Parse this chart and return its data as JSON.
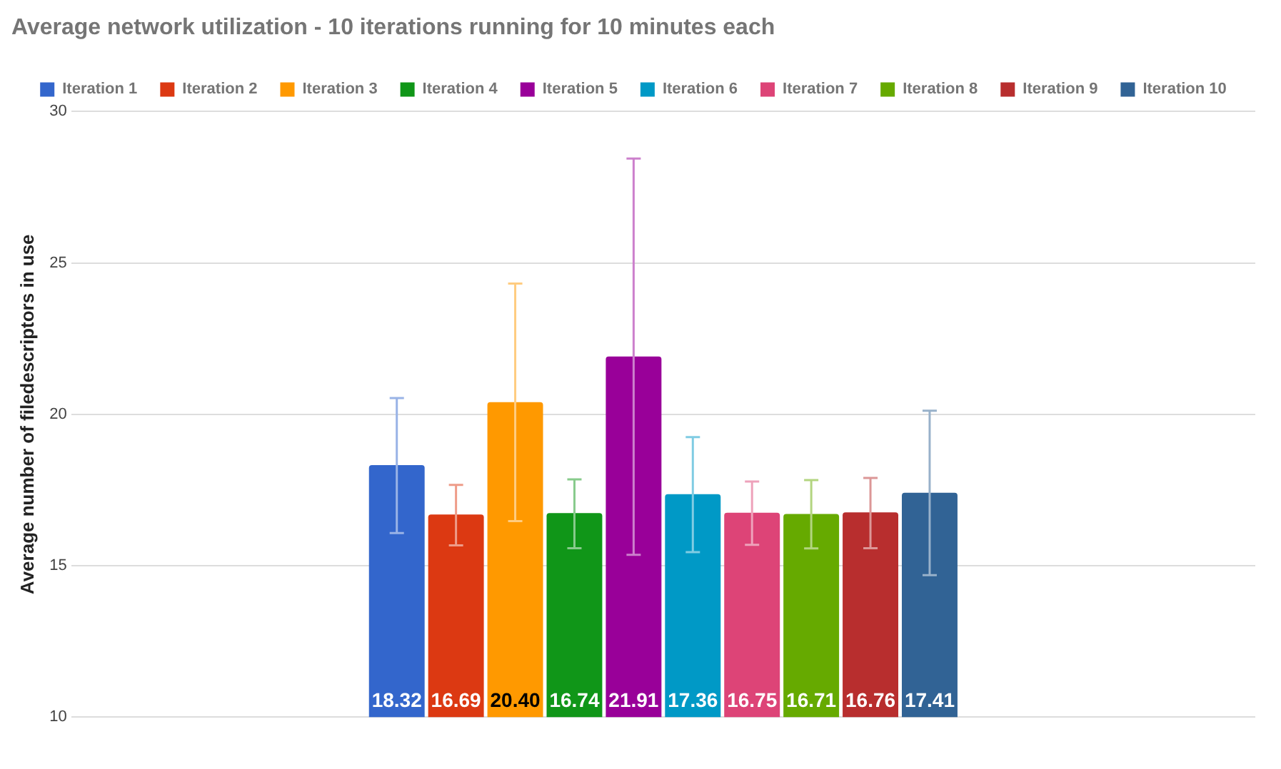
{
  "chart_data": {
    "type": "bar",
    "title": "Average network utilization - 10 iterations running for 10 minutes each",
    "ylabel": "Average number of filedescriptors in use",
    "categories": [
      null
    ],
    "series": [
      {
        "name": "Iteration 1",
        "color": "#3366cc",
        "values": [
          18.32
        ],
        "value_labels": [
          "18.32"
        ],
        "errors": [
          [
            16.08,
            20.54
          ]
        ]
      },
      {
        "name": "Iteration 2",
        "color": "#dc3912",
        "values": [
          16.69
        ],
        "value_labels": [
          "16.69"
        ],
        "errors": [
          [
            15.67,
            17.67
          ]
        ]
      },
      {
        "name": "Iteration 3",
        "color": "#ff9900",
        "values": [
          20.4
        ],
        "value_labels": [
          "20.40"
        ],
        "errors": [
          [
            16.47,
            24.32
          ]
        ]
      },
      {
        "name": "Iteration 4",
        "color": "#109618",
        "values": [
          16.74
        ],
        "value_labels": [
          "16.74"
        ],
        "errors": [
          [
            15.58,
            17.85
          ]
        ]
      },
      {
        "name": "Iteration 5",
        "color": "#990099",
        "values": [
          21.91
        ],
        "value_labels": [
          "21.91"
        ],
        "errors": [
          [
            15.36,
            28.45
          ]
        ]
      },
      {
        "name": "Iteration 6",
        "color": "#0099c6",
        "values": [
          17.36
        ],
        "value_labels": [
          "17.36"
        ],
        "errors": [
          [
            15.45,
            19.25
          ]
        ]
      },
      {
        "name": "Iteration 7",
        "color": "#dd4477",
        "values": [
          16.75
        ],
        "value_labels": [
          "16.75"
        ],
        "errors": [
          [
            15.69,
            17.78
          ]
        ]
      },
      {
        "name": "Iteration 8",
        "color": "#66aa00",
        "values": [
          16.71
        ],
        "value_labels": [
          "16.71"
        ],
        "errors": [
          [
            15.57,
            17.83
          ]
        ]
      },
      {
        "name": "Iteration 9",
        "color": "#b82e2e",
        "values": [
          16.76
        ],
        "value_labels": [
          "16.76"
        ],
        "errors": [
          [
            15.58,
            17.9
          ]
        ]
      },
      {
        "name": "Iteration 10",
        "color": "#316395",
        "values": [
          17.41
        ],
        "value_labels": [
          "17.41"
        ],
        "errors": [
          [
            14.69,
            20.12
          ]
        ]
      }
    ],
    "ylim": [
      10,
      30
    ],
    "yticks": [
      10,
      15,
      20,
      25,
      30
    ],
    "grid": "y",
    "legend": "top"
  }
}
